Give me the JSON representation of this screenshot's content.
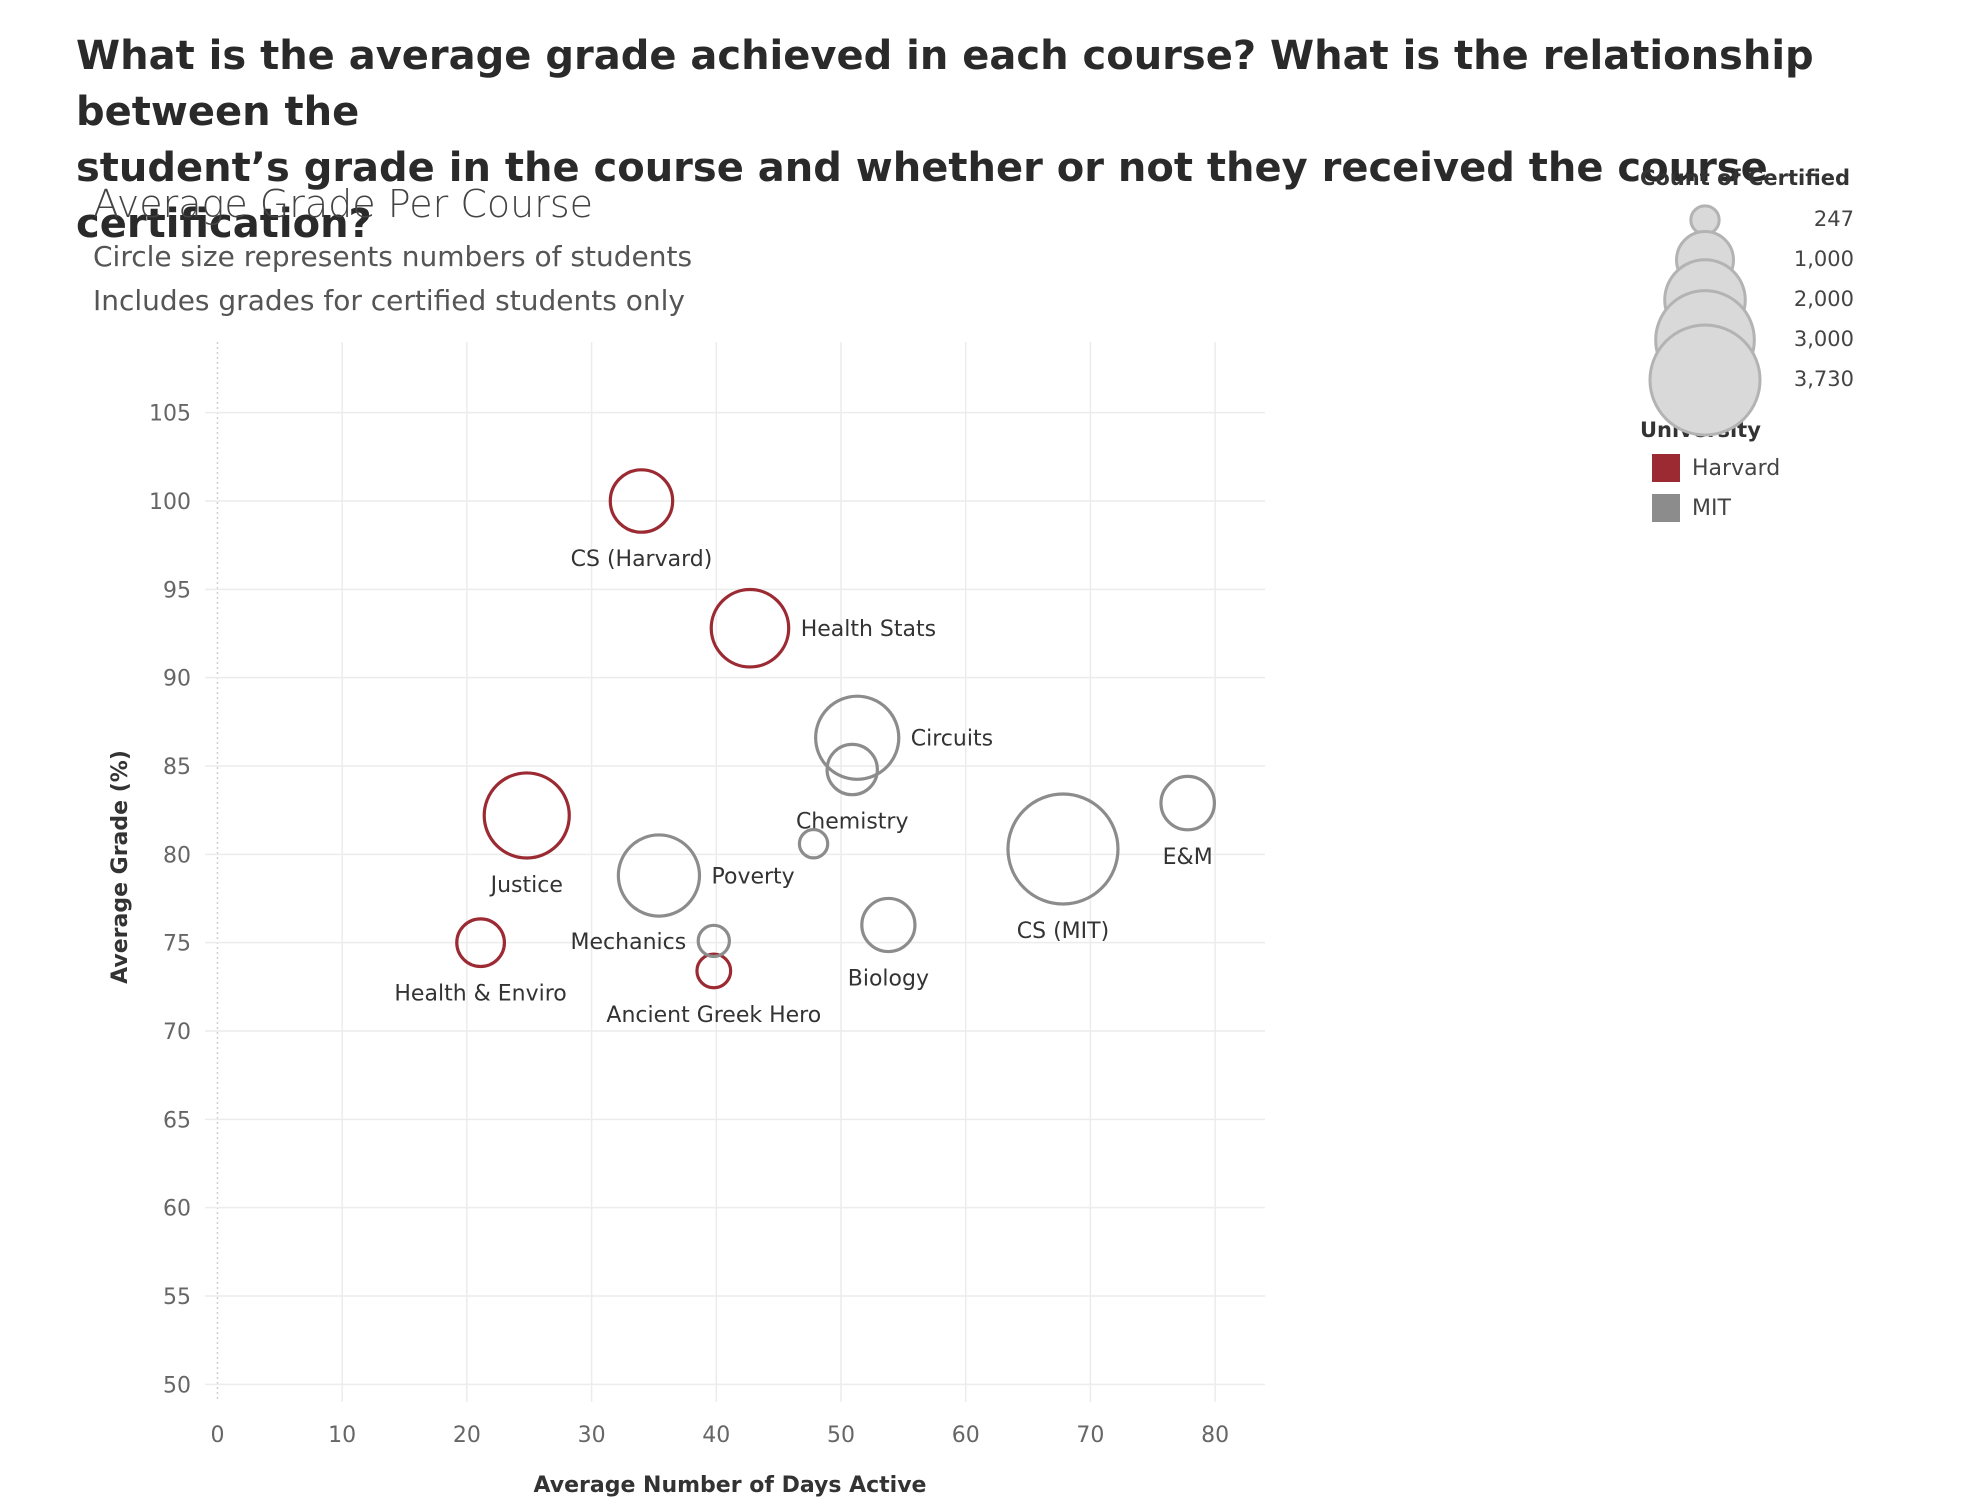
{
  "question": {
    "line1": "What is the average grade achieved in each course? What is the relationship between the",
    "line2": "student’s grade in the course and whether or not they received the course certification?"
  },
  "chart_data": {
    "type": "scatter",
    "title": "Average Grade Per Course",
    "subtitle1": "Circle size represents numbers of students",
    "subtitle2": "Includes grades for certified students only",
    "xlabel": "Average Number of Days Active",
    "ylabel": "Average Grade (%)",
    "xlim": [
      -1,
      84
    ],
    "ylim": [
      49,
      109
    ],
    "xticks": [
      0,
      10,
      20,
      30,
      40,
      50,
      60,
      70,
      80
    ],
    "yticks": [
      50,
      55,
      60,
      65,
      70,
      75,
      80,
      85,
      90,
      95,
      100,
      105
    ],
    "grid": true,
    "size_encoding": "Count of Certified",
    "series": [
      {
        "name": "Harvard",
        "color": "#9b2a33"
      },
      {
        "name": "MIT",
        "color": "#8c8c8c"
      }
    ],
    "points": [
      {
        "label": "CS (Harvard)",
        "university": "Harvard",
        "x": 34,
        "y": 100,
        "size": 1200,
        "label_pos": "below"
      },
      {
        "label": "Health Stats",
        "university": "Harvard",
        "x": 42.7,
        "y": 92.8,
        "size": 1850,
        "label_pos": "right"
      },
      {
        "label": "Justice",
        "university": "Harvard",
        "x": 24.8,
        "y": 82.2,
        "size": 2230,
        "label_pos": "below"
      },
      {
        "label": "Health & Enviro",
        "university": "Harvard",
        "x": 21.1,
        "y": 75,
        "size": 700,
        "label_pos": "below"
      },
      {
        "label": "Ancient Greek Hero",
        "university": "Harvard",
        "x": 39.8,
        "y": 73.4,
        "size": 350,
        "label_pos": "below"
      },
      {
        "label": "Circuits",
        "university": "MIT",
        "x": 51.3,
        "y": 86.6,
        "size": 2130,
        "label_pos": "right"
      },
      {
        "label": "Chemistry",
        "university": "MIT",
        "x": 50.9,
        "y": 84.8,
        "size": 780,
        "label_pos": "below"
      },
      {
        "label": "E&M",
        "university": "MIT",
        "x": 77.8,
        "y": 82.9,
        "size": 880,
        "label_pos": "below"
      },
      {
        "label": "",
        "university": "MIT",
        "x": 47.8,
        "y": 80.6,
        "size": 247,
        "label_pos": "none"
      },
      {
        "label": "CS (MIT)",
        "university": "MIT",
        "x": 67.8,
        "y": 80.3,
        "size": 3730,
        "label_pos": "below"
      },
      {
        "label": "Poverty",
        "university": "MIT",
        "x": 35.4,
        "y": 78.8,
        "size": 2030,
        "label_pos": "right"
      },
      {
        "label": "Biology",
        "university": "MIT",
        "x": 53.8,
        "y": 76,
        "size": 870,
        "label_pos": "below"
      },
      {
        "label": "Mechanics",
        "university": "MIT",
        "x": 39.8,
        "y": 75.1,
        "size": 300,
        "label_pos": "left"
      }
    ]
  },
  "legend": {
    "size_title": "Count of Certified",
    "size_values": [
      "247",
      "1,000",
      "2,000",
      "3,000",
      "3,730"
    ],
    "color_title": "University",
    "color_items": [
      {
        "label": "Harvard",
        "color": "#9b2a33"
      },
      {
        "label": "MIT",
        "color": "#8c8c8c"
      }
    ]
  }
}
